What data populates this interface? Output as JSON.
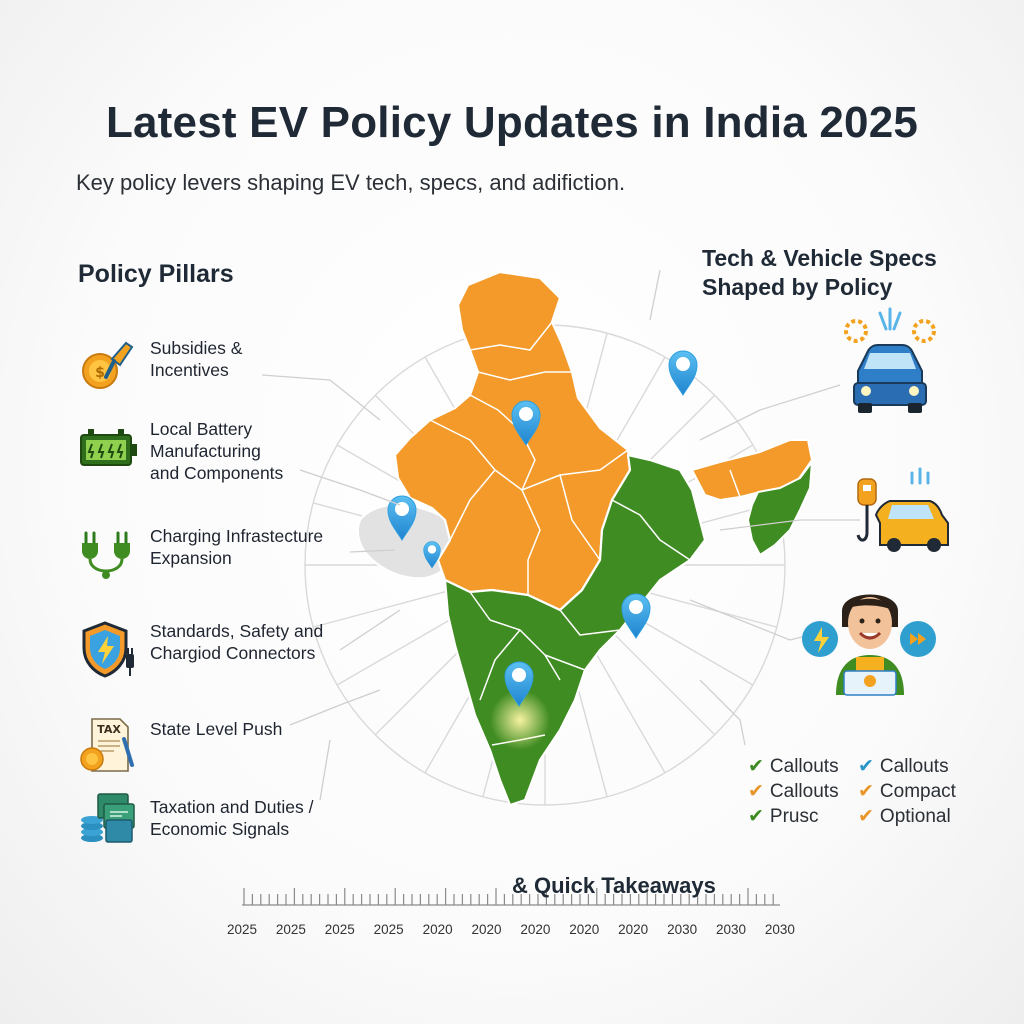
{
  "header": {
    "title": "Latest EV Policy Updates in India 2025",
    "subtitle": "Key policy levers shaping EV tech, specs, and adifiction."
  },
  "pillars": {
    "heading": "Policy Pillars",
    "items": [
      {
        "label": "Subsidies &\nIncentives",
        "icon": "coin-hand-icon"
      },
      {
        "label": "Local Battery\nManufacturing\nand Components",
        "icon": "battery-icon"
      },
      {
        "label": "Charging Infrastecture\nExpansion",
        "icon": "charging-plug-icon"
      },
      {
        "label": "Standards, Safety and\nChargiod Connectors",
        "icon": "safety-shield-icon"
      },
      {
        "label": "State Level Push",
        "icon": "tax-document-icon"
      },
      {
        "label": "Taxation and Duties /\nEconomic Signals",
        "icon": "money-stack-icon"
      }
    ]
  },
  "specs": {
    "heading": "Tech & Vehicle Specs\nShaped by Policy",
    "icons": [
      "blue-car-icon",
      "charging-car-icon",
      "person-avatar-icon"
    ]
  },
  "callouts": {
    "items": [
      {
        "text": "Callouts",
        "color": "#3d8a22"
      },
      {
        "text": "Callouts",
        "color": "#2a96c8"
      },
      {
        "text": "Callouts",
        "color": "#e8952a"
      },
      {
        "text": "Compact",
        "color": "#e8952a"
      },
      {
        "text": "Prusc",
        "color": "#3d8a22"
      },
      {
        "text": "Optional",
        "color": "#e8952a"
      }
    ]
  },
  "map": {
    "colors": {
      "orange": "#f39a2a",
      "green": "#3f8c22",
      "pin": "#2f9fe0"
    }
  },
  "timeline": {
    "title": "& Quick Takeaways",
    "years": [
      "2025",
      "2025",
      "2025",
      "2025",
      "2020",
      "2020",
      "2020",
      "2020",
      "2020",
      "2030",
      "2030",
      "2030"
    ]
  }
}
